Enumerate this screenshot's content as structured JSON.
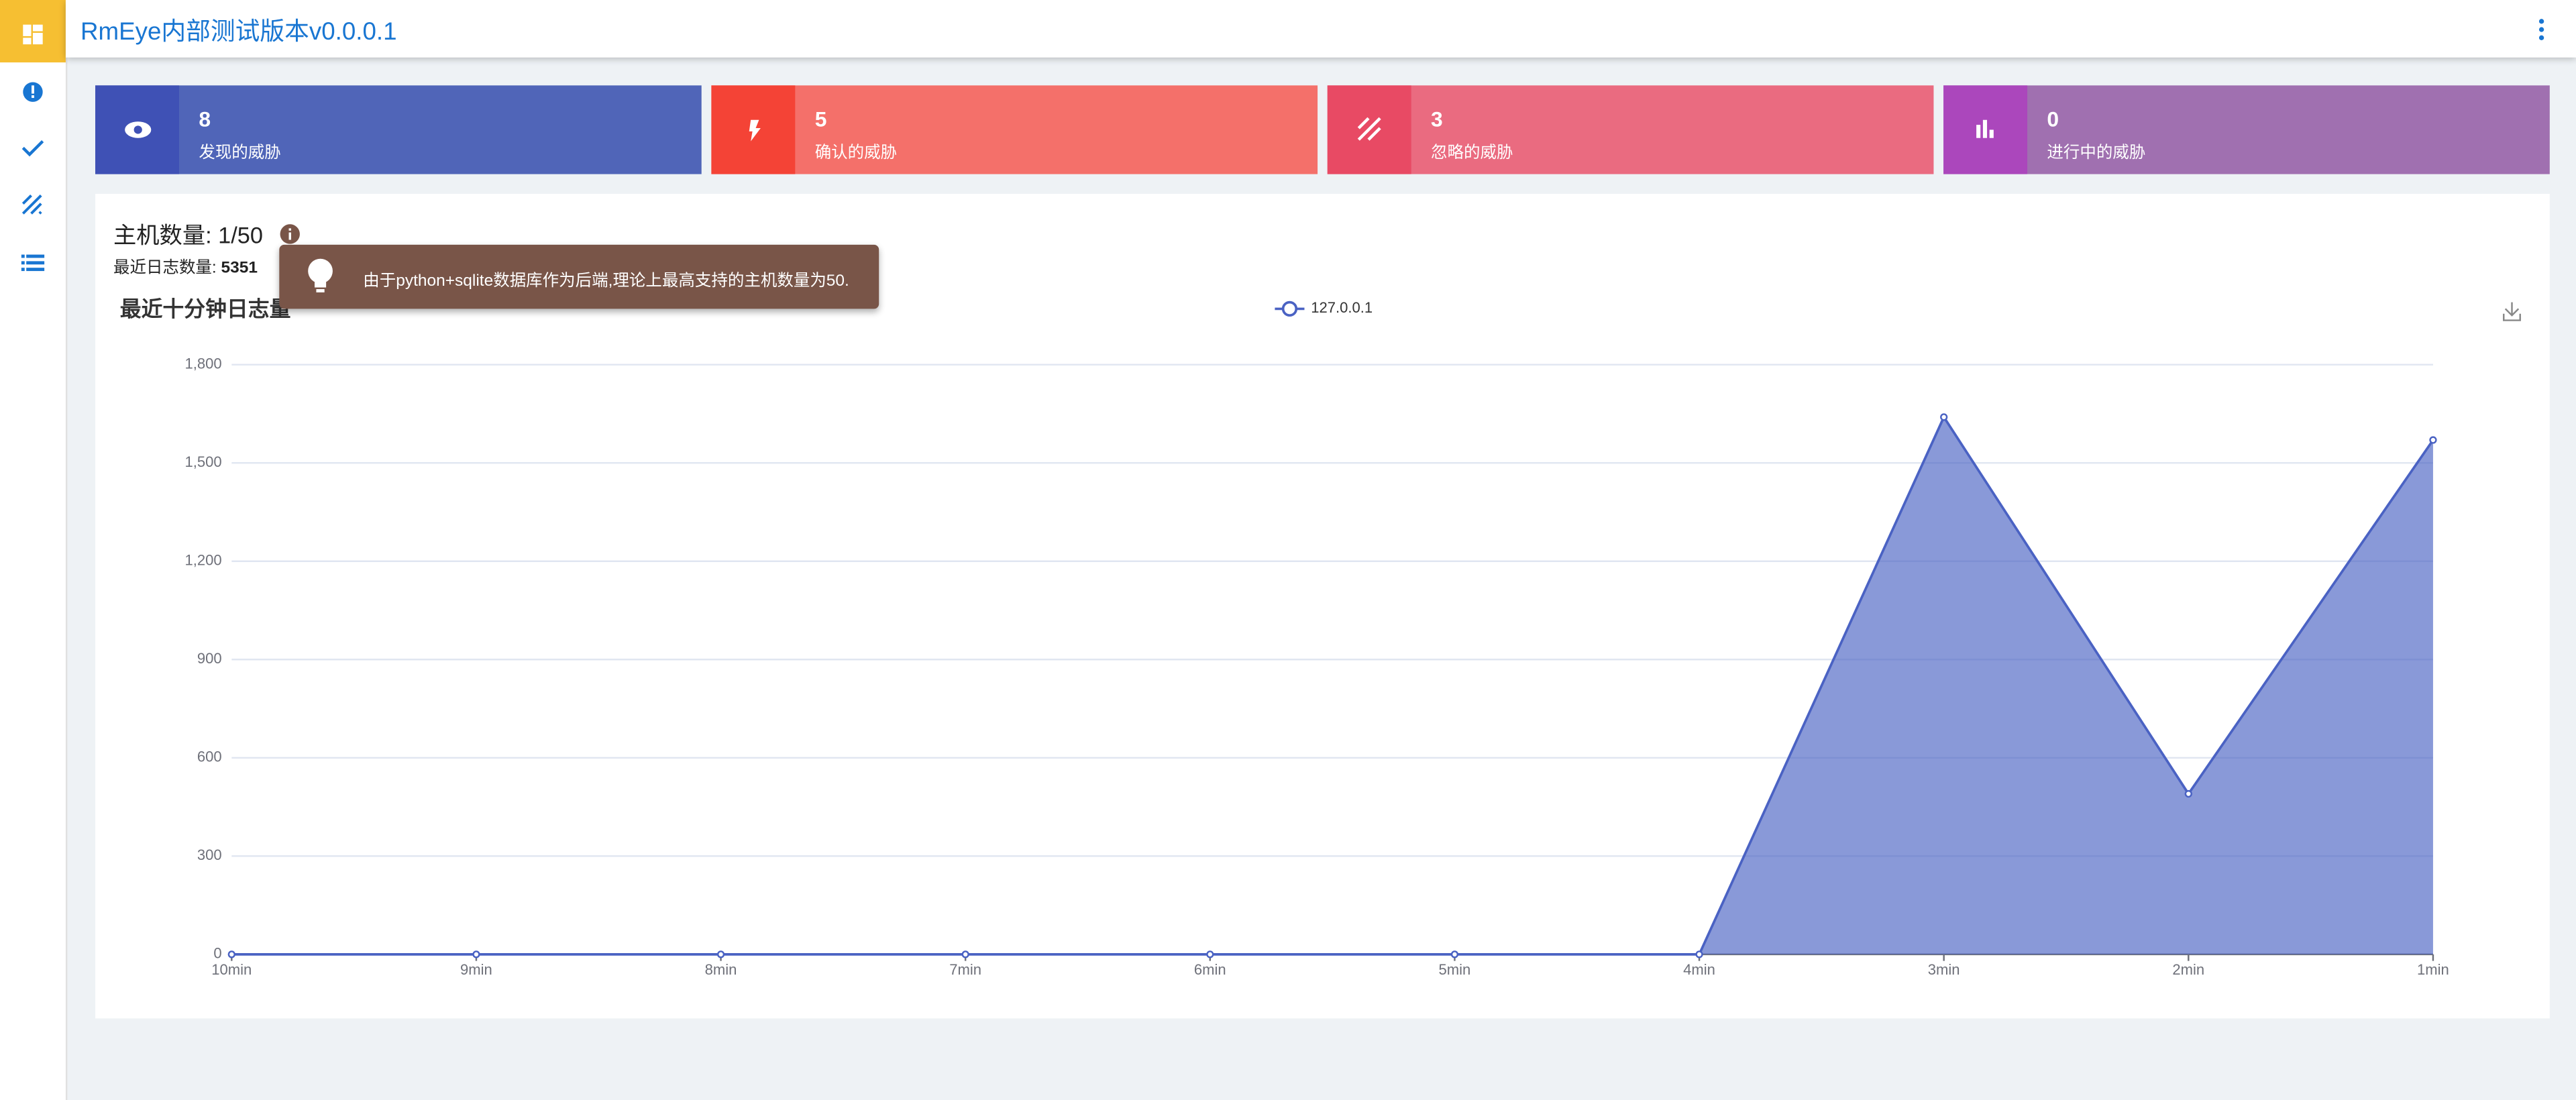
{
  "header": {
    "title": "RmEye内部测试版本v0.0.0.1"
  },
  "stats": [
    {
      "value": 8,
      "label": "发现的威胁"
    },
    {
      "value": 5,
      "label": "确认的威胁"
    },
    {
      "value": 3,
      "label": "忽略的威胁"
    },
    {
      "value": 0,
      "label": "进行中的威胁"
    }
  ],
  "host": {
    "count_label": "主机数量:",
    "count": "1/50",
    "log_label": "最近日志数量:",
    "log_count": 5351
  },
  "tooltip": "由于python+sqlite数据库作为后端,理论上最高支持的主机数量为50.",
  "chart_data": {
    "type": "area",
    "title": "最近十分钟日志量",
    "categories": [
      "10min",
      "9min",
      "8min",
      "7min",
      "6min",
      "5min",
      "4min",
      "3min",
      "2min",
      "1min"
    ],
    "series": [
      {
        "name": "127.0.0.1",
        "color": "#4a62c3",
        "values": [
          0,
          0,
          0,
          0,
          0,
          0,
          0,
          1640,
          490,
          1570
        ]
      }
    ],
    "ylim": [
      0,
      1800
    ],
    "yticks": [
      0,
      300,
      600,
      900,
      {
        "value": 1200,
        "label": "1,200"
      },
      {
        "value": 1500,
        "label": "1,500"
      },
      {
        "value": 1800,
        "label": "1,800"
      }
    ],
    "grid": true
  }
}
